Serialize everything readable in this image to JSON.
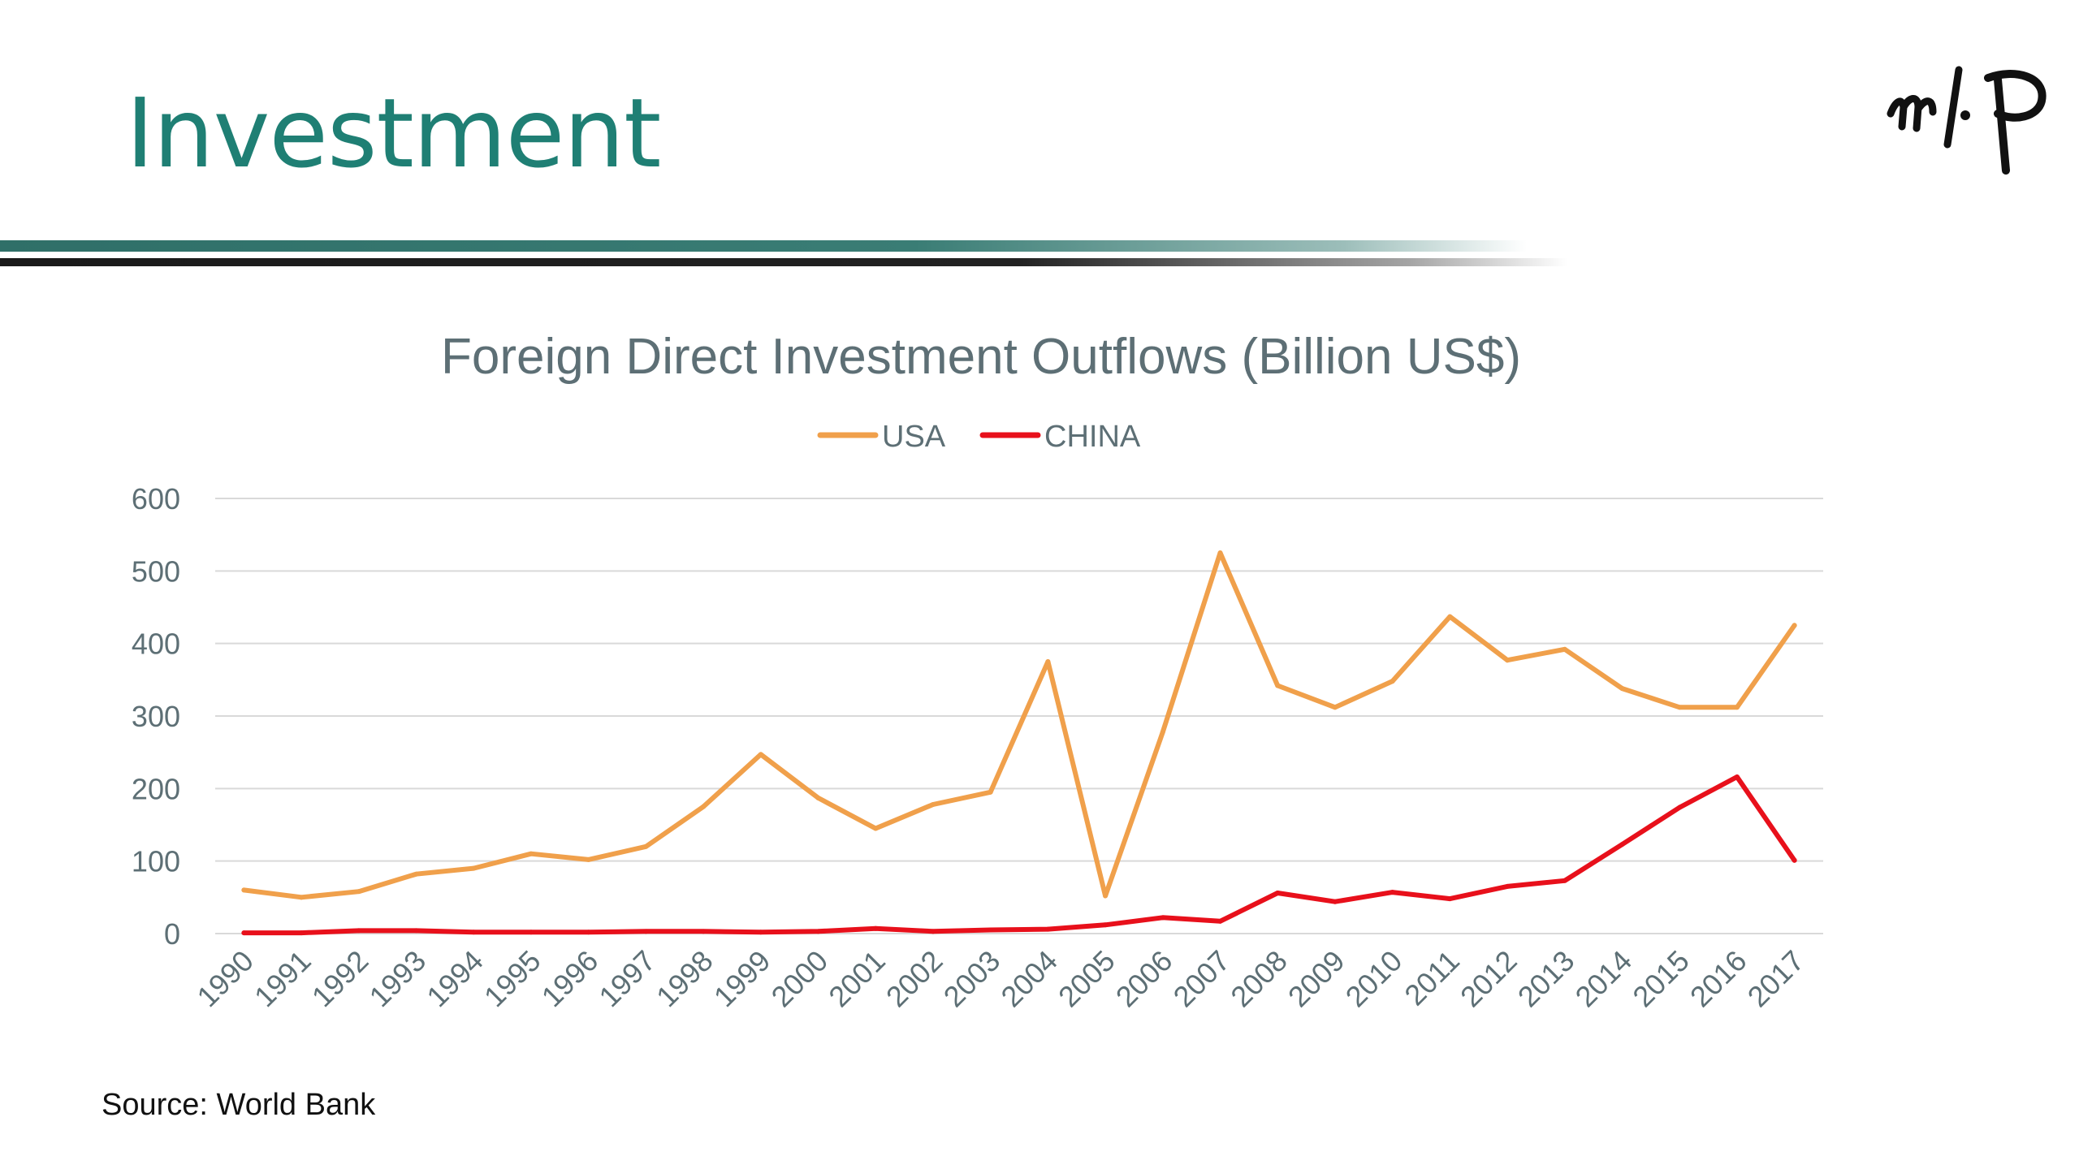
{
  "slide": {
    "title": "Investment",
    "source": "Source: World Bank",
    "logo_icon": "calligraphy-logo-icon"
  },
  "colors": {
    "title": "#1f7f74",
    "usa": "#f0a04b",
    "china": "#e8101b",
    "grid": "#d9d9d9",
    "axis_text": "#5d6f75"
  },
  "chart_data": {
    "type": "line",
    "title": "Foreign Direct Investment Outflows (Billion US$)",
    "xlabel": "",
    "ylabel": "",
    "ylim": [
      0,
      600
    ],
    "yticks": [
      0,
      100,
      200,
      300,
      400,
      500,
      600
    ],
    "grid": true,
    "legend_position": "top-center",
    "categories": [
      "1990",
      "1991",
      "1992",
      "1993",
      "1994",
      "1995",
      "1996",
      "1997",
      "1998",
      "1999",
      "2000",
      "2001",
      "2002",
      "2003",
      "2004",
      "2005",
      "2006",
      "2007",
      "2008",
      "2009",
      "2010",
      "2011",
      "2012",
      "2013",
      "2014",
      "2015",
      "2016",
      "2017"
    ],
    "series": [
      {
        "name": "USA",
        "color": "#f0a04b",
        "values": [
          60,
          50,
          58,
          82,
          90,
          110,
          102,
          120,
          175,
          247,
          187,
          145,
          178,
          195,
          375,
          52,
          278,
          525,
          342,
          312,
          348,
          437,
          377,
          392,
          338,
          312,
          312,
          425
        ]
      },
      {
        "name": "CHINA",
        "color": "#e8101b",
        "values": [
          1,
          1,
          4,
          4,
          2,
          2,
          2,
          3,
          3,
          2,
          3,
          7,
          3,
          5,
          6,
          12,
          22,
          17,
          56,
          44,
          57,
          48,
          65,
          73,
          123,
          174,
          216,
          101
        ]
      }
    ]
  }
}
